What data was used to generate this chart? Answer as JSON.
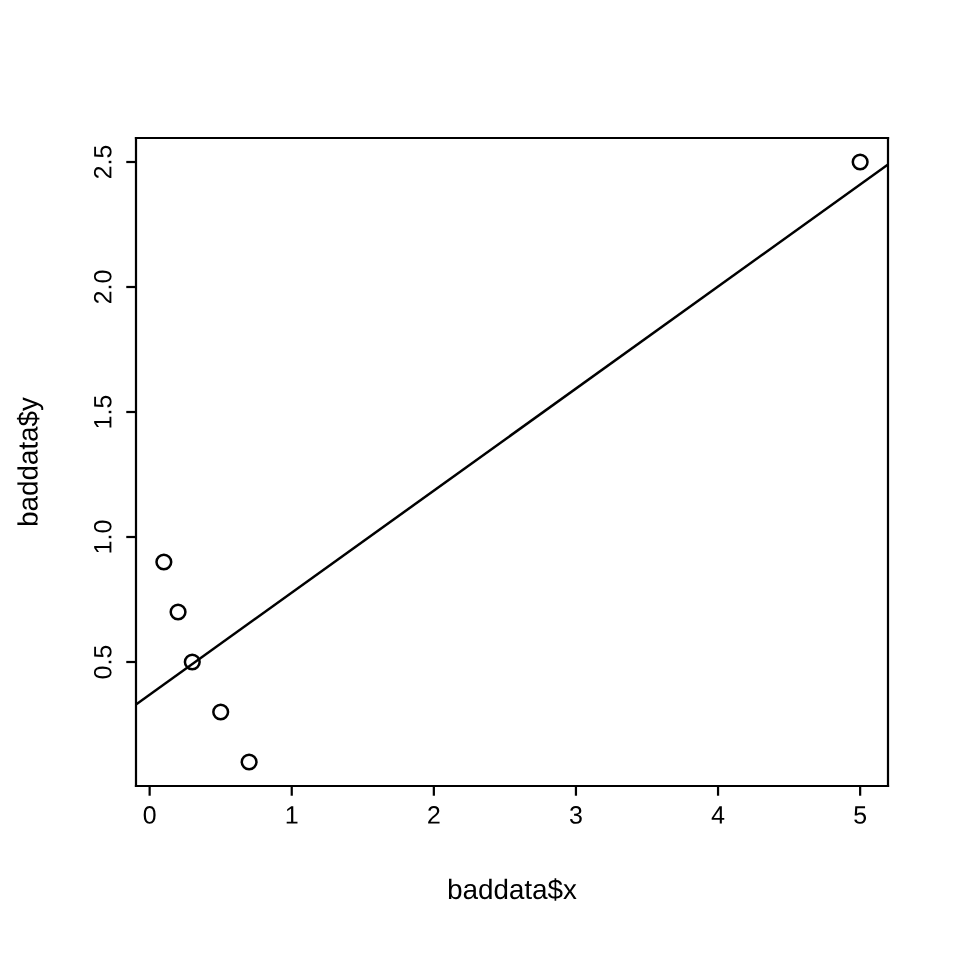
{
  "chart_data": {
    "type": "scatter",
    "xlabel": "baddata$x",
    "ylabel": "baddata$y",
    "xlim": [
      -0.096,
      5.196
    ],
    "ylim": [
      0.004,
      2.596
    ],
    "xticks": [
      0,
      1,
      2,
      3,
      4,
      5
    ],
    "yticks": [
      0.5,
      {
        "value": 1,
        "label": "1.0"
      },
      1.5,
      {
        "value": 2,
        "label": "2.0"
      },
      2.5
    ],
    "grid": false,
    "legend": false,
    "series": [
      {
        "marker": "circle",
        "color": "#000000",
        "x": [
          0.1,
          0.2,
          0.3,
          0.5,
          0.7,
          5.0
        ],
        "values": [
          0.9,
          0.7,
          0.5,
          0.3,
          0.1,
          2.5
        ]
      },
      {
        "type": "line",
        "color": "#000000",
        "line_style": "solid",
        "x": [
          -0.096,
          5.196
        ],
        "values": [
          0.33,
          2.49
        ]
      }
    ]
  }
}
